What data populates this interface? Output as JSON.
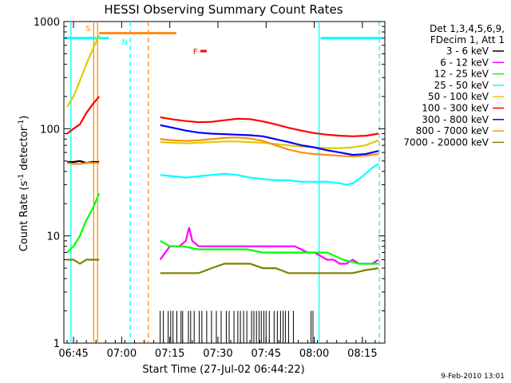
{
  "chart_data": {
    "type": "line",
    "title": "HESSI Observing Summary Count Rates",
    "xlabel": "Start Time (27-Jul-02 06:44:22)",
    "ylabel_main": "Count Rate (s",
    "ylabel_sup": "-1",
    "ylabel_mid": " detector",
    "ylabel_end": ")",
    "yscale": "log",
    "ylim": [
      1,
      1000
    ],
    "xlim_min": [
      -2,
      98
    ],
    "y_ticks": [
      {
        "v": 1,
        "label": "1"
      },
      {
        "v": 10,
        "label": "10"
      },
      {
        "v": 100,
        "label": "100"
      },
      {
        "v": 1000,
        "label": "1000"
      }
    ],
    "x_ticks": [
      {
        "m": 1,
        "label": "06:45"
      },
      {
        "m": 16,
        "label": "07:00"
      },
      {
        "m": 31,
        "label": "07:15"
      },
      {
        "m": 46,
        "label": "07:30"
      },
      {
        "m": 61,
        "label": "07:45"
      },
      {
        "m": 76,
        "label": "08:00"
      },
      {
        "m": 91,
        "label": "08:15"
      }
    ],
    "legend_header": [
      "Det 1,3,4,5,6,9,",
      "FDecim 1, Att 1"
    ],
    "legend_position": "right",
    "series": [
      {
        "name": "3 - 6 keV",
        "color": "#000000",
        "x": [
          -1,
          1,
          3,
          5,
          7,
          9
        ],
        "y": [
          49,
          49,
          50,
          48,
          49,
          49
        ]
      },
      {
        "name": "6 - 12 keV",
        "color": "#ff00ff",
        "x": [
          28,
          31,
          34,
          36,
          37,
          38,
          40,
          45,
          50,
          55,
          60,
          65,
          68,
          70,
          74,
          76,
          78,
          80,
          82,
          84,
          86,
          88,
          90,
          92,
          94,
          96
        ],
        "y": [
          6,
          8,
          8,
          9,
          12,
          9,
          8,
          8,
          8,
          8,
          8,
          8,
          8,
          8,
          7,
          7,
          6.5,
          6,
          6,
          5.5,
          5.5,
          6,
          5.5,
          5.5,
          5.5,
          6
        ]
      },
      {
        "name": "12 - 25 keV",
        "color": "#00ff00",
        "x": [
          -1,
          1,
          3,
          5,
          7,
          9,
          28,
          31,
          35,
          40,
          45,
          50,
          55,
          60,
          65,
          70,
          75,
          80,
          85,
          90,
          96
        ],
        "y": [
          7,
          8,
          10,
          14,
          18,
          25,
          9,
          8,
          8,
          7.5,
          7.5,
          7.5,
          7.5,
          7,
          7,
          7,
          7,
          7,
          6,
          5.5,
          5.5
        ]
      },
      {
        "name": "25 - 50 keV",
        "color": "#00ffff",
        "x": [
          28,
          32,
          36,
          40,
          44,
          48,
          52,
          56,
          60,
          64,
          68,
          72,
          76,
          80,
          84,
          86,
          88,
          90,
          92,
          94,
          96
        ],
        "y": [
          37,
          36,
          35,
          36,
          37,
          38,
          37,
          35,
          34,
          33,
          33,
          32,
          32,
          32,
          31,
          30,
          31,
          34,
          38,
          43,
          47
        ]
      },
      {
        "name": "50 - 100 keV",
        "color": "#ddcc00",
        "x": [
          -1,
          1,
          3,
          5,
          7,
          9,
          28,
          32,
          36,
          40,
          44,
          48,
          52,
          56,
          60,
          64,
          68,
          72,
          76,
          80,
          84,
          88,
          92,
          96
        ],
        "y": [
          160,
          200,
          280,
          400,
          550,
          750,
          75,
          74,
          73,
          74,
          75,
          76,
          76,
          75,
          74,
          72,
          70,
          68,
          67,
          66,
          66,
          67,
          70,
          78
        ]
      },
      {
        "name": "100 - 300 keV",
        "color": "#ff0000",
        "x": [
          -1,
          1,
          3,
          5,
          7,
          9,
          28,
          32,
          36,
          40,
          44,
          48,
          52,
          56,
          60,
          64,
          68,
          72,
          76,
          80,
          84,
          88,
          92,
          96
        ],
        "y": [
          90,
          100,
          110,
          140,
          170,
          200,
          128,
          122,
          118,
          115,
          116,
          120,
          124,
          123,
          117,
          110,
          102,
          96,
          91,
          88,
          86,
          85,
          86,
          90
        ]
      },
      {
        "name": "300 - 800 keV",
        "color": "#0000ff",
        "x": [
          28,
          32,
          36,
          40,
          44,
          48,
          52,
          56,
          60,
          64,
          68,
          72,
          76,
          80,
          84,
          88,
          92,
          96
        ],
        "y": [
          108,
          102,
          96,
          92,
          90,
          89,
          88,
          87,
          85,
          80,
          75,
          70,
          67,
          63,
          60,
          57,
          58,
          62
        ]
      },
      {
        "name": "800 - 7000 keV",
        "color": "#ff8c1a",
        "x": [
          -1,
          1,
          3,
          5,
          7,
          9,
          28,
          32,
          36,
          40,
          44,
          48,
          52,
          56,
          60,
          64,
          68,
          72,
          76,
          80,
          84,
          88,
          92,
          96
        ],
        "y": [
          48,
          47,
          47,
          48,
          48,
          48,
          80,
          78,
          77,
          78,
          80,
          82,
          83,
          81,
          77,
          70,
          64,
          60,
          58,
          57,
          56,
          55,
          56,
          58
        ]
      },
      {
        "name": "7000 - 20000 keV",
        "color": "#808000",
        "x": [
          -1,
          1,
          3,
          5,
          7,
          9,
          28,
          32,
          36,
          40,
          44,
          48,
          52,
          56,
          60,
          64,
          68,
          72,
          76,
          80,
          84,
          88,
          92,
          96
        ],
        "y": [
          6,
          6,
          5.5,
          6,
          6,
          6,
          4.5,
          4.5,
          4.5,
          4.5,
          5,
          5.5,
          5.5,
          5.5,
          5,
          5,
          4.5,
          4.5,
          4.5,
          4.5,
          4.5,
          4.5,
          4.8,
          5
        ]
      }
    ],
    "black_spike_minutes": [
      28,
      29,
      30.5,
      31.3,
      32,
      33.2,
      34.5,
      35,
      36.8,
      37.5,
      38.6,
      40.2,
      41,
      42.5,
      44,
      45.5,
      47,
      48.6,
      49.5,
      51,
      52.2,
      53,
      54,
      55,
      56.5,
      57.2,
      58,
      58.8,
      59.5,
      60.3,
      61,
      62,
      63.5,
      64.5,
      65.5,
      66.3,
      67,
      68,
      69.5,
      75,
      75.6
    ],
    "annotations": [
      {
        "label": "S",
        "color": "#ff8c1a",
        "m": 5.5,
        "v": 870
      },
      {
        "label": "N",
        "color": "#00ffff",
        "m": 17,
        "v": 650
      },
      {
        "label": "F",
        "color": "#ff0000",
        "m": 39,
        "v": 530
      }
    ],
    "intervals": [
      {
        "color": "#00ffff",
        "m0": -2,
        "m1": 12,
        "v": 700
      },
      {
        "color": "#ff8c1a",
        "m0": 9,
        "m1": 33,
        "v": 780
      },
      {
        "color": "#00ffff",
        "m0": 78,
        "m1": 97,
        "v": 700
      },
      {
        "color": "#ff0000",
        "m0": 40.5,
        "m1": 42.5,
        "v": 530
      }
    ],
    "vlines": [
      {
        "m": 0.2,
        "color": "#00ffff",
        "dash": false
      },
      {
        "m": 7.3,
        "color": "#ff8c1a",
        "dash": false
      },
      {
        "m": 8.5,
        "color": "#ff8c1a",
        "dash": false
      },
      {
        "m": 18.7,
        "color": "#00ffff",
        "dash": true
      },
      {
        "m": 24.3,
        "color": "#ff8c1a",
        "dash": true
      },
      {
        "m": 77.5,
        "color": "#00ffff",
        "dash": false
      },
      {
        "m": 96.3,
        "color": "#00ffff",
        "dash": true
      }
    ],
    "footer_date": "9-Feb-2010 13:01"
  }
}
